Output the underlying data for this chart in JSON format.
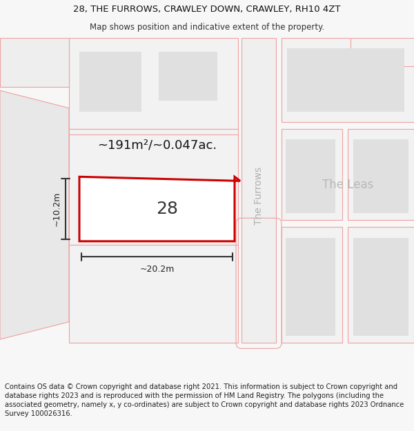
{
  "title_line1": "28, THE FURROWS, CRAWLEY DOWN, CRAWLEY, RH10 4ZT",
  "title_line2": "Map shows position and indicative extent of the property.",
  "footer_text": "Contains OS data © Crown copyright and database right 2021. This information is subject to Crown copyright and database rights 2023 and is reproduced with the permission of HM Land Registry. The polygons (including the associated geometry, namely x, y co-ordinates) are subject to Crown copyright and database rights 2023 Ordnance Survey 100026316.",
  "area_label": "~191m²/~0.047ac.",
  "width_label": "~20.2m",
  "height_label": "~10.2m",
  "plot_number": "28",
  "road_label_furrows": "The Furrows",
  "road_label_leas": "The Leas",
  "bg_color": "#f7f7f7",
  "map_bg": "#ffffff",
  "plot_fill": "#ffffff",
  "plot_border": "#cc0000",
  "pink_line": "#f0a0a0",
  "building_fill": "#e0e0e0",
  "parcel_fill": "#f2f2f2",
  "road_color": "#eeeeee",
  "title_fontsize": 9.5,
  "subtitle_fontsize": 8.5,
  "footer_fontsize": 7.2,
  "area_fontsize": 13,
  "meas_fontsize": 9,
  "plot_label_fontsize": 18,
  "road_label_fontsize": 10,
  "leas_fontsize": 12
}
